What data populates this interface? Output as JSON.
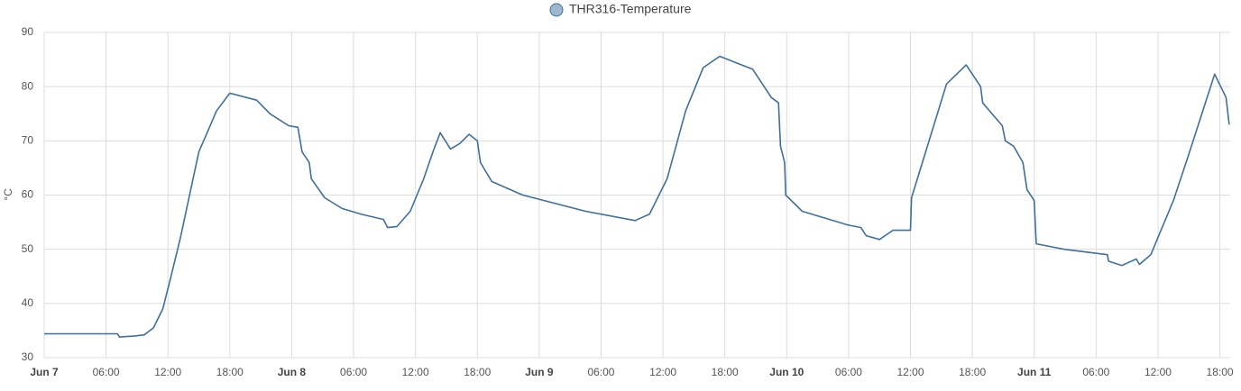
{
  "chart_data": {
    "type": "line",
    "y_label": "°C",
    "series": [
      {
        "name": "THR316-Temperature",
        "color": "#3f6f9c",
        "x": [
          0,
          7.1,
          7.3,
          8.8,
          9.7,
          10.6,
          11.5,
          12.3,
          13.2,
          14.1,
          15.0,
          15.8,
          16.7,
          18.0,
          20.6,
          21.9,
          23.7,
          24.6,
          25.0,
          25.7,
          25.9,
          27.2,
          28.9,
          30.7,
          32.9,
          33.3,
          34.2,
          35.5,
          36.8,
          37.7,
          38.4,
          39.4,
          40.3,
          41.2,
          42.0,
          42.3,
          43.4,
          46.4,
          52.5,
          57.3,
          58.7,
          60.4,
          62.2,
          63.9,
          65.5,
          68.7,
          70.5,
          71.2,
          71.4,
          71.8,
          71.9,
          73.5,
          77.9,
          79.2,
          79.7,
          81.0,
          82.3,
          84.0,
          84.1,
          87.5,
          89.4,
          90.8,
          91.0,
          92.9,
          93.2,
          94.0,
          94.9,
          95.3,
          96.0,
          96.2,
          98.9,
          103.1,
          103.2,
          104.5,
          105.9,
          106.2,
          107.3,
          109.5,
          110.9,
          113.5,
          114.6,
          114.9
        ],
        "values": [
          34.4,
          34.4,
          33.8,
          34.0,
          34.2,
          35.5,
          39,
          45,
          52,
          60,
          68,
          71.5,
          75.5,
          78.8,
          77.5,
          75,
          72.8,
          72.5,
          68,
          66,
          63,
          59.5,
          57.5,
          56.5,
          55.5,
          54,
          54.2,
          57,
          63,
          68,
          71.5,
          68.5,
          69.5,
          71.2,
          70,
          66,
          62.5,
          60,
          57,
          55.3,
          56.5,
          63,
          75.5,
          83.5,
          85.6,
          83.2,
          78,
          77,
          69,
          66,
          60,
          57,
          54.5,
          54,
          52.5,
          51.8,
          53.5,
          53.5,
          59.5,
          80.5,
          84.0,
          80,
          77,
          72.8,
          70,
          69,
          66,
          61,
          59,
          51,
          50,
          49,
          47.8,
          47,
          48.2,
          47.2,
          49,
          59,
          67,
          82.3,
          78,
          73
        ]
      }
    ],
    "xlim": [
      0,
      115
    ],
    "xticks": [
      {
        "value": 0,
        "label": "Jun 7"
      },
      {
        "value": 6,
        "label": "06:00"
      },
      {
        "value": 12,
        "label": "12:00"
      },
      {
        "value": 18,
        "label": "18:00"
      },
      {
        "value": 24,
        "label": "Jun 8"
      },
      {
        "value": 30,
        "label": "06:00"
      },
      {
        "value": 36,
        "label": "12:00"
      },
      {
        "value": 42,
        "label": "18:00"
      },
      {
        "value": 48,
        "label": "Jun 9"
      },
      {
        "value": 54,
        "label": "06:00"
      },
      {
        "value": 60,
        "label": "12:00"
      },
      {
        "value": 66,
        "label": "18:00"
      },
      {
        "value": 72,
        "label": "Jun 10"
      },
      {
        "value": 78,
        "label": "06:00"
      },
      {
        "value": 84,
        "label": "12:00"
      },
      {
        "value": 90,
        "label": "18:00"
      },
      {
        "value": 96,
        "label": "Jun 11"
      },
      {
        "value": 102,
        "label": "06:00"
      },
      {
        "value": 108,
        "label": "12:00"
      },
      {
        "value": 114,
        "label": "18:00"
      }
    ],
    "ylim": [
      30,
      90
    ],
    "yticks": [
      30,
      40,
      50,
      60,
      70,
      80,
      90
    ],
    "grid": true
  }
}
